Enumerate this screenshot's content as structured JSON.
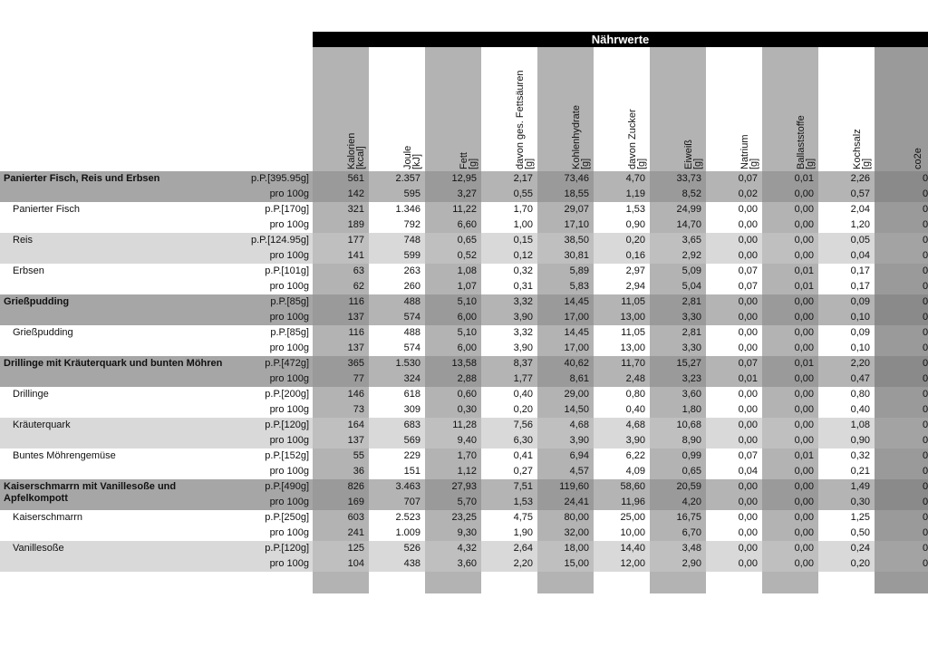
{
  "header": {
    "title": "Nährwerte"
  },
  "columns": [
    {
      "name": "Kalorien",
      "unit": "[kcal]"
    },
    {
      "name": "Joule",
      "unit": "[kJ]"
    },
    {
      "name": "Fett",
      "unit": "[g]"
    },
    {
      "name": "davon ges. Fettsäuren",
      "unit": "[g]"
    },
    {
      "name": "Kohlenhydrate",
      "unit": "[g]"
    },
    {
      "name": "davon Zucker",
      "unit": "[g]"
    },
    {
      "name": "Eiweiß",
      "unit": "[g]"
    },
    {
      "name": "Natrium",
      "unit": "[g]"
    },
    {
      "name": "Ballaststoffe",
      "unit": "[g]"
    },
    {
      "name": "Kochsalz",
      "unit": "[g]"
    },
    {
      "name": "co2e"
    }
  ],
  "dishes": [
    {
      "name": "Panierter Fisch, Reis und Erbsen",
      "rows": [
        {
          "portion": "p.P.[395.95g]",
          "values": [
            "561",
            "2.357",
            "12,95",
            "2,17",
            "73,46",
            "4,70",
            "33,73",
            "0,07",
            "0,01",
            "2,26",
            "0"
          ]
        },
        {
          "portion": "pro 100g",
          "values": [
            "142",
            "595",
            "3,27",
            "0,55",
            "18,55",
            "1,19",
            "8,52",
            "0,02",
            "0,00",
            "0,57",
            "0"
          ]
        }
      ],
      "components": [
        {
          "name": "Panierter Fisch",
          "rows": [
            {
              "portion": "p.P.[170g]",
              "values": [
                "321",
                "1.346",
                "11,22",
                "1,70",
                "29,07",
                "1,53",
                "24,99",
                "0,00",
                "0,00",
                "2,04",
                "0"
              ]
            },
            {
              "portion": "pro 100g",
              "values": [
                "189",
                "792",
                "6,60",
                "1,00",
                "17,10",
                "0,90",
                "14,70",
                "0,00",
                "0,00",
                "1,20",
                "0"
              ]
            }
          ]
        },
        {
          "name": "Reis",
          "rows": [
            {
              "portion": "p.P.[124.95g]",
              "values": [
                "177",
                "748",
                "0,65",
                "0,15",
                "38,50",
                "0,20",
                "3,65",
                "0,00",
                "0,00",
                "0,05",
                "0"
              ]
            },
            {
              "portion": "pro 100g",
              "values": [
                "141",
                "599",
                "0,52",
                "0,12",
                "30,81",
                "0,16",
                "2,92",
                "0,00",
                "0,00",
                "0,04",
                "0"
              ]
            }
          ]
        },
        {
          "name": "Erbsen",
          "rows": [
            {
              "portion": "p.P.[101g]",
              "values": [
                "63",
                "263",
                "1,08",
                "0,32",
                "5,89",
                "2,97",
                "5,09",
                "0,07",
                "0,01",
                "0,17",
                "0"
              ]
            },
            {
              "portion": "pro 100g",
              "values": [
                "62",
                "260",
                "1,07",
                "0,31",
                "5,83",
                "2,94",
                "5,04",
                "0,07",
                "0,01",
                "0,17",
                "0"
              ]
            }
          ]
        }
      ]
    },
    {
      "name": "Grießpudding",
      "rows": [
        {
          "portion": "p.P.[85g]",
          "values": [
            "116",
            "488",
            "5,10",
            "3,32",
            "14,45",
            "11,05",
            "2,81",
            "0,00",
            "0,00",
            "0,09",
            "0"
          ]
        },
        {
          "portion": "pro 100g",
          "values": [
            "137",
            "574",
            "6,00",
            "3,90",
            "17,00",
            "13,00",
            "3,30",
            "0,00",
            "0,00",
            "0,10",
            "0"
          ]
        }
      ],
      "components": [
        {
          "name": "Grießpudding",
          "rows": [
            {
              "portion": "p.P.[85g]",
              "values": [
                "116",
                "488",
                "5,10",
                "3,32",
                "14,45",
                "11,05",
                "2,81",
                "0,00",
                "0,00",
                "0,09",
                "0"
              ]
            },
            {
              "portion": "pro 100g",
              "values": [
                "137",
                "574",
                "6,00",
                "3,90",
                "17,00",
                "13,00",
                "3,30",
                "0,00",
                "0,00",
                "0,10",
                "0"
              ]
            }
          ]
        }
      ]
    },
    {
      "name": "Drillinge mit Kräuterquark und bunten Möhren",
      "rows": [
        {
          "portion": "p.P.[472g]",
          "values": [
            "365",
            "1.530",
            "13,58",
            "8,37",
            "40,62",
            "11,70",
            "15,27",
            "0,07",
            "0,01",
            "2,20",
            "0"
          ]
        },
        {
          "portion": "pro 100g",
          "values": [
            "77",
            "324",
            "2,88",
            "1,77",
            "8,61",
            "2,48",
            "3,23",
            "0,01",
            "0,00",
            "0,47",
            "0"
          ]
        }
      ],
      "components": [
        {
          "name": "Drillinge",
          "rows": [
            {
              "portion": "p.P.[200g]",
              "values": [
                "146",
                "618",
                "0,60",
                "0,40",
                "29,00",
                "0,80",
                "3,60",
                "0,00",
                "0,00",
                "0,80",
                "0"
              ]
            },
            {
              "portion": "pro 100g",
              "values": [
                "73",
                "309",
                "0,30",
                "0,20",
                "14,50",
                "0,40",
                "1,80",
                "0,00",
                "0,00",
                "0,40",
                "0"
              ]
            }
          ]
        },
        {
          "name": "Kräuterquark",
          "rows": [
            {
              "portion": "p.P.[120g]",
              "values": [
                "164",
                "683",
                "11,28",
                "7,56",
                "4,68",
                "4,68",
                "10,68",
                "0,00",
                "0,00",
                "1,08",
                "0"
              ]
            },
            {
              "portion": "pro 100g",
              "values": [
                "137",
                "569",
                "9,40",
                "6,30",
                "3,90",
                "3,90",
                "8,90",
                "0,00",
                "0,00",
                "0,90",
                "0"
              ]
            }
          ]
        },
        {
          "name": "Buntes Möhrengemüse",
          "rows": [
            {
              "portion": "p.P.[152g]",
              "values": [
                "55",
                "229",
                "1,70",
                "0,41",
                "6,94",
                "6,22",
                "0,99",
                "0,07",
                "0,01",
                "0,32",
                "0"
              ]
            },
            {
              "portion": "pro 100g",
              "values": [
                "36",
                "151",
                "1,12",
                "0,27",
                "4,57",
                "4,09",
                "0,65",
                "0,04",
                "0,00",
                "0,21",
                "0"
              ]
            }
          ]
        }
      ]
    },
    {
      "name": "Kaiserschmarrn mit Vanillesoße und Apfelkompott",
      "rows": [
        {
          "portion": "p.P.[490g]",
          "values": [
            "826",
            "3.463",
            "27,93",
            "7,51",
            "119,60",
            "58,60",
            "20,59",
            "0,00",
            "0,00",
            "1,49",
            "0"
          ]
        },
        {
          "portion": "pro 100g",
          "values": [
            "169",
            "707",
            "5,70",
            "1,53",
            "24,41",
            "11,96",
            "4,20",
            "0,00",
            "0,00",
            "0,30",
            "0"
          ]
        }
      ],
      "components": [
        {
          "name": "Kaiserschmarrn",
          "rows": [
            {
              "portion": "p.P.[250g]",
              "values": [
                "603",
                "2.523",
                "23,25",
                "4,75",
                "80,00",
                "25,00",
                "16,75",
                "0,00",
                "0,00",
                "1,25",
                "0"
              ]
            },
            {
              "portion": "pro 100g",
              "values": [
                "241",
                "1.009",
                "9,30",
                "1,90",
                "32,00",
                "10,00",
                "6,70",
                "0,00",
                "0,00",
                "0,50",
                "0"
              ]
            }
          ]
        },
        {
          "name": "Vanillesoße",
          "rows": [
            {
              "portion": "p.P.[120g]",
              "values": [
                "125",
                "526",
                "4,32",
                "2,64",
                "18,00",
                "14,40",
                "3,48",
                "0,00",
                "0,00",
                "0,24",
                "0"
              ]
            },
            {
              "portion": "pro 100g",
              "values": [
                "104",
                "438",
                "3,60",
                "2,20",
                "15,00",
                "12,00",
                "2,90",
                "0,00",
                "0,00",
                "0,20",
                "0"
              ]
            }
          ]
        }
      ]
    }
  ]
}
